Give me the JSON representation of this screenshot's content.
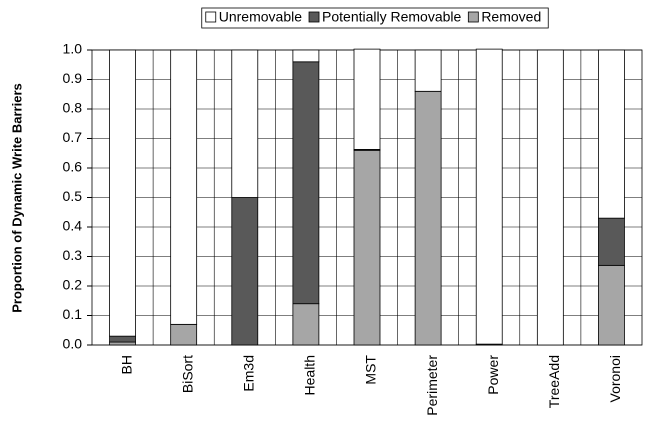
{
  "chart_data": {
    "type": "stacked_bar",
    "y_label": "Proportion of Dynamic Write Barriers",
    "categories": [
      "BH",
      "BiSort",
      "Em3d",
      "Health",
      "MST",
      "Perimeter",
      "Power",
      "TreeAdd",
      "Voronoi"
    ],
    "series": [
      {
        "name": "Unremovable",
        "color": "#ffffff",
        "values": [
          0.97,
          0.93,
          0.5,
          0.04,
          0.34,
          0.14,
          1.0,
          1.0,
          0.57
        ]
      },
      {
        "name": "Potentially Removable",
        "color": "#595959",
        "values": [
          0.02,
          0,
          0.5,
          0.82,
          0.003,
          0,
          0.003,
          0,
          0.16
        ]
      },
      {
        "name": "Removed",
        "color": "#a6a6a6",
        "values": [
          0.01,
          0.07,
          0,
          0.14,
          0.66,
          0.86,
          0,
          0,
          0.27
        ]
      }
    ],
    "stack_order": "last-series-bottom",
    "ylim": [
      0,
      1.0
    ],
    "yticks": [
      {
        "value": 0,
        "label": "0.0"
      },
      0.1,
      0.2,
      0.3,
      0.4,
      0.5,
      0.6,
      0.7,
      0.8,
      0.9,
      {
        "value": 1,
        "label": "1.0"
      }
    ],
    "grid": true,
    "legend": "top"
  }
}
